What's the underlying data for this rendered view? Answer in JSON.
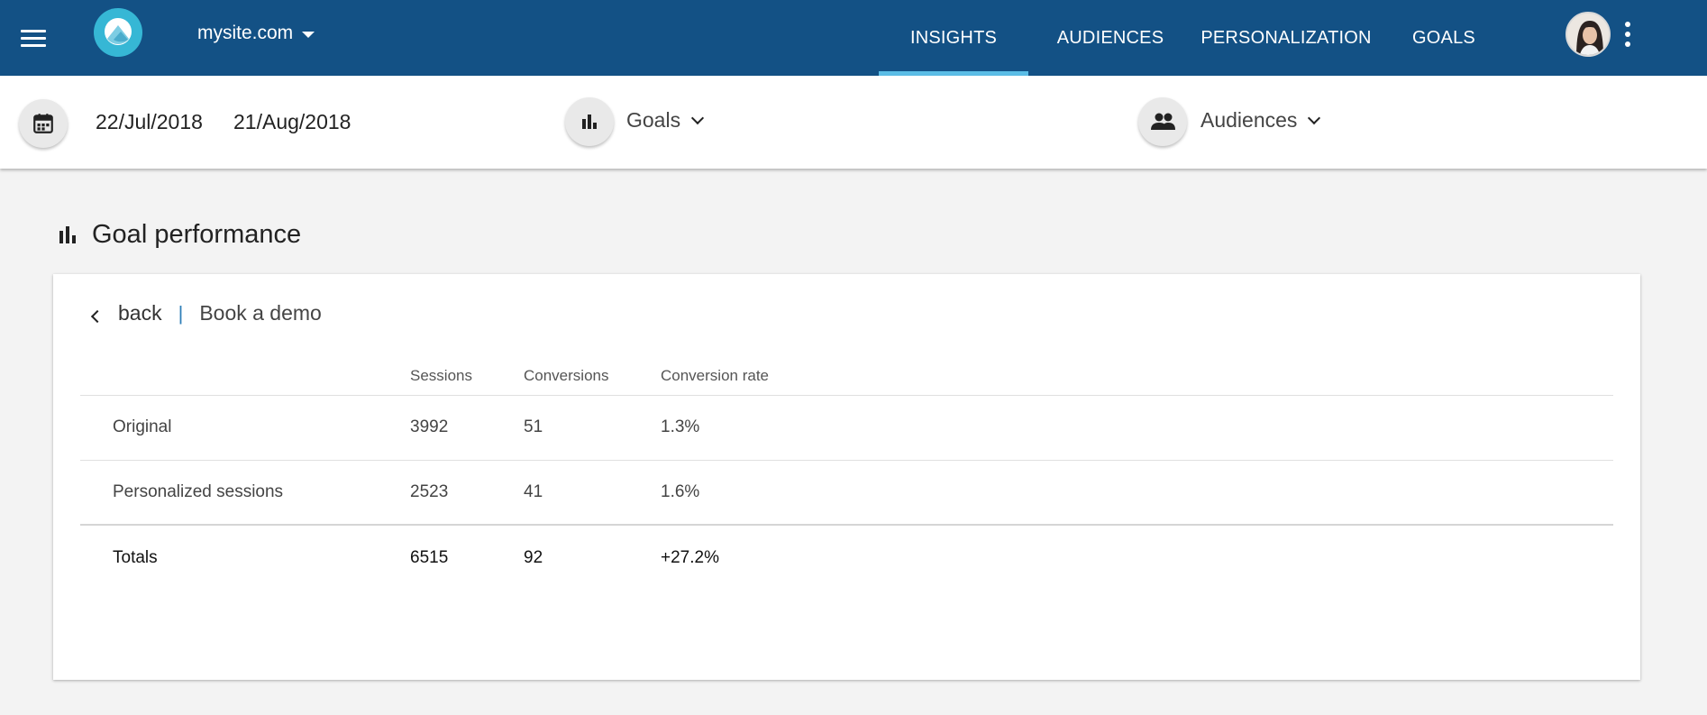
{
  "header": {
    "site": "mysite.com",
    "nav": [
      {
        "label": "INSIGHTS",
        "active": true
      },
      {
        "label": "AUDIENCES",
        "active": false
      },
      {
        "label": "PERSONALIZATION",
        "active": false
      },
      {
        "label": "GOALS",
        "active": false
      }
    ],
    "colors": {
      "bar": "#135185",
      "active_indicator": "#5bbde6",
      "logo": "#36b7d5"
    }
  },
  "filters": {
    "start_date": "22/Jul/2018",
    "end_date": "21/Aug/2018",
    "goals_label": "Goals",
    "audiences_label": "Audiences",
    "icons": [
      "calendar-icon",
      "bar-chart-icon",
      "people-icon"
    ]
  },
  "section": {
    "title": "Goal performance",
    "icon": "bar-chart-icon"
  },
  "card": {
    "back_label": "back",
    "separator": "|",
    "current": "Book a demo",
    "columns": [
      "",
      "Sessions",
      "Conversions",
      "Conversion rate"
    ],
    "rows": [
      {
        "name": "Original",
        "sessions": "3992",
        "conversions": "51",
        "rate": "1.3%"
      },
      {
        "name": "Personalized sessions",
        "sessions": "2523",
        "conversions": "41",
        "rate": "1.6%"
      }
    ],
    "totals": {
      "name": "Totals",
      "sessions": "6515",
      "conversions": "92",
      "rate": "+27.2%"
    },
    "colors": {
      "rate": "#2d9a7e"
    }
  }
}
